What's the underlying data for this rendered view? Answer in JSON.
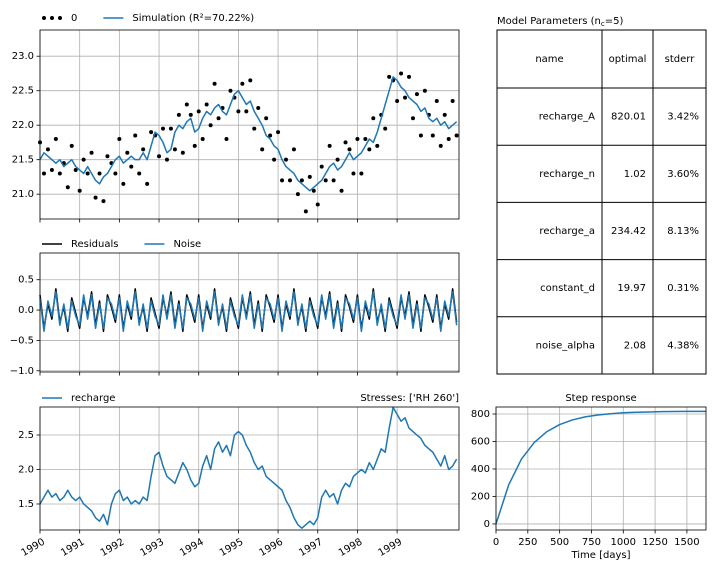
{
  "chart_data": [
    {
      "type": "line",
      "grid": true,
      "xlim": [
        1990,
        2000.56
      ],
      "xticks": [
        1990,
        1991,
        1992,
        1993,
        1994,
        1995,
        1996,
        1997,
        1998,
        1999
      ],
      "ylim": [
        20.64,
        23.38
      ],
      "yticks": [
        {
          "value": 21,
          "label": "21.0"
        },
        21.5,
        {
          "value": 22,
          "label": "22.0"
        },
        22.5,
        {
          "value": 23,
          "label": "23.0"
        }
      ],
      "x": [
        1990,
        1990.1,
        1990.2,
        1990.3,
        1990.4,
        1990.5,
        1990.6,
        1990.7,
        1990.8,
        1990.9,
        1991,
        1991.1,
        1991.2,
        1991.3,
        1991.4,
        1991.5,
        1991.6,
        1991.7,
        1991.8,
        1991.9,
        1992,
        1992.1,
        1992.2,
        1992.3,
        1992.4,
        1992.5,
        1992.6,
        1992.7,
        1992.8,
        1992.9,
        1993,
        1993.1,
        1993.2,
        1993.3,
        1993.4,
        1993.5,
        1993.6,
        1993.7,
        1993.8,
        1993.9,
        1994,
        1994.1,
        1994.2,
        1994.3,
        1994.4,
        1994.5,
        1994.6,
        1994.7,
        1994.8,
        1994.9,
        1995,
        1995.1,
        1995.2,
        1995.3,
        1995.4,
        1995.5,
        1995.6,
        1995.7,
        1995.8,
        1995.9,
        1996,
        1996.1,
        1996.2,
        1996.3,
        1996.4,
        1996.5,
        1996.6,
        1996.7,
        1996.8,
        1996.9,
        1997,
        1997.1,
        1997.2,
        1997.3,
        1997.4,
        1997.5,
        1997.6,
        1997.7,
        1997.8,
        1997.9,
        1998,
        1998.1,
        1998.2,
        1998.3,
        1998.4,
        1998.5,
        1998.6,
        1998.7,
        1998.8,
        1998.9,
        1999,
        1999.1,
        1999.2,
        1999.3,
        1999.4,
        1999.5,
        1999.6,
        1999.7,
        1999.8,
        1999.9,
        2000,
        2000.1,
        2000.2,
        2000.3,
        2000.4,
        2000.5
      ],
      "series": [
        {
          "name": "0",
          "color": "#000000",
          "marker": true,
          "values": [
            21.75,
            21.3,
            21.65,
            21.35,
            21.8,
            21.3,
            21.45,
            21.1,
            21.7,
            21.35,
            21.05,
            21.5,
            21.3,
            21.6,
            20.95,
            21.3,
            20.9,
            21.55,
            21.45,
            21.3,
            21.8,
            21.15,
            21.6,
            21.4,
            21.85,
            21.3,
            21.65,
            21.15,
            21.9,
            21.85,
            21.55,
            21.95,
            21.5,
            21.95,
            21.65,
            22.15,
            21.6,
            22.3,
            22.15,
            21.7,
            22.2,
            21.8,
            22.3,
            22.0,
            22.6,
            22.1,
            22.25,
            21.8,
            22.5,
            22.4,
            22.2,
            22.6,
            22.2,
            22.65,
            21.95,
            22.25,
            21.65,
            22.1,
            21.85,
            21.5,
            21.9,
            21.2,
            21.5,
            21.2,
            21.65,
            21.0,
            21.2,
            20.75,
            21.25,
            21.05,
            20.85,
            21.4,
            21.2,
            21.7,
            21.2,
            21.5,
            21.05,
            21.75,
            21.65,
            21.3,
            21.8,
            21.3,
            21.8,
            21.65,
            22.1,
            21.7,
            22.15,
            21.95,
            22.7,
            22.65,
            22.35,
            22.75,
            22.4,
            22.7,
            22.1,
            22.45,
            21.85,
            22.5,
            22.15,
            21.85,
            22.35,
            21.7,
            22.15,
            21.8,
            22.35,
            21.85
          ]
        },
        {
          "name": "Simulation (R²=70.22%)",
          "color": "#1f77b4",
          "values": [
            21.5,
            21.6,
            21.55,
            21.5,
            21.45,
            21.5,
            21.4,
            21.45,
            21.5,
            21.4,
            21.35,
            21.3,
            21.4,
            21.3,
            21.2,
            21.15,
            21.25,
            21.3,
            21.4,
            21.5,
            21.55,
            21.45,
            21.5,
            21.55,
            21.5,
            21.5,
            21.6,
            21.5,
            21.7,
            21.9,
            21.85,
            21.75,
            21.6,
            21.65,
            21.9,
            22.0,
            21.95,
            22.05,
            22.1,
            21.9,
            21.95,
            22.1,
            22.2,
            22.15,
            22.25,
            22.3,
            22.2,
            22.15,
            22.3,
            22.45,
            22.5,
            22.4,
            22.3,
            22.35,
            22.2,
            22.1,
            22.0,
            21.85,
            21.8,
            21.7,
            21.65,
            21.5,
            21.4,
            21.35,
            21.3,
            21.2,
            21.15,
            21.1,
            21.05,
            21.1,
            21.15,
            21.2,
            21.3,
            21.4,
            21.45,
            21.35,
            21.4,
            21.5,
            21.6,
            21.5,
            21.55,
            21.6,
            21.7,
            21.8,
            21.75,
            21.9,
            22.1,
            22.3,
            22.5,
            22.7,
            22.65,
            22.55,
            22.5,
            22.4,
            22.35,
            22.3,
            22.2,
            22.25,
            22.1,
            22.05,
            22.1,
            22.0,
            22.05,
            21.95,
            22.0,
            22.05
          ]
        }
      ]
    },
    {
      "type": "line",
      "grid": true,
      "xlim": [
        1990,
        2000.56
      ],
      "xticks": [
        1990,
        1991,
        1992,
        1993,
        1994,
        1995,
        1996,
        1997,
        1998,
        1999
      ],
      "ylim": [
        -1.02,
        0.94
      ],
      "yticks": [
        {
          "value": -1,
          "label": "−1.0"
        },
        {
          "value": -0.5,
          "label": "−0.5"
        },
        {
          "value": 0,
          "label": "0.0"
        },
        0.5
      ],
      "x": [
        1990,
        1990.1,
        1990.2,
        1990.3,
        1990.4,
        1990.5,
        1990.6,
        1990.7,
        1990.8,
        1990.9,
        1991,
        1991.1,
        1991.2,
        1991.3,
        1991.4,
        1991.5,
        1991.6,
        1991.7,
        1991.8,
        1991.9,
        1992,
        1992.1,
        1992.2,
        1992.3,
        1992.4,
        1992.5,
        1992.6,
        1992.7,
        1992.8,
        1992.9,
        1993,
        1993.1,
        1993.2,
        1993.3,
        1993.4,
        1993.5,
        1993.6,
        1993.7,
        1993.8,
        1993.9,
        1994,
        1994.1,
        1994.2,
        1994.3,
        1994.4,
        1994.5,
        1994.6,
        1994.7,
        1994.8,
        1994.9,
        1995,
        1995.1,
        1995.2,
        1995.3,
        1995.4,
        1995.5,
        1995.6,
        1995.7,
        1995.8,
        1995.9,
        1996,
        1996.1,
        1996.2,
        1996.3,
        1996.4,
        1996.5,
        1996.6,
        1996.7,
        1996.8,
        1996.9,
        1997,
        1997.1,
        1997.2,
        1997.3,
        1997.4,
        1997.5,
        1997.6,
        1997.7,
        1997.8,
        1997.9,
        1998,
        1998.1,
        1998.2,
        1998.3,
        1998.4,
        1998.5,
        1998.6,
        1998.7,
        1998.8,
        1998.9,
        1999,
        1999.1,
        1999.2,
        1999.3,
        1999.4,
        1999.5,
        1999.6,
        1999.7,
        1999.8,
        1999.9,
        2000,
        2000.1,
        2000.2,
        2000.3,
        2000.4,
        2000.5
      ],
      "series": [
        {
          "name": "Residuals",
          "color": "#000000",
          "values": [
            0.25,
            -0.3,
            0.1,
            -0.15,
            0.35,
            -0.2,
            0.05,
            -0.35,
            0.2,
            -0.05,
            -0.3,
            0.2,
            -0.1,
            0.3,
            -0.25,
            0.15,
            -0.35,
            0.25,
            0.05,
            -0.2,
            0.25,
            -0.3,
            0.1,
            -0.15,
            0.35,
            -0.2,
            0.05,
            -0.35,
            0.2,
            -0.05,
            -0.3,
            0.2,
            -0.1,
            0.3,
            -0.25,
            0.15,
            -0.35,
            0.25,
            0.05,
            -0.2,
            0.25,
            -0.3,
            0.1,
            -0.15,
            0.35,
            -0.2,
            0.05,
            -0.35,
            0.2,
            -0.05,
            -0.3,
            0.2,
            -0.1,
            0.3,
            -0.25,
            0.15,
            -0.35,
            0.25,
            0.05,
            -0.2,
            0.25,
            -0.3,
            0.1,
            -0.15,
            0.35,
            -0.2,
            0.05,
            -0.35,
            0.2,
            -0.05,
            -0.3,
            0.2,
            -0.1,
            0.3,
            -0.25,
            0.15,
            -0.35,
            0.25,
            0.05,
            -0.2,
            0.25,
            -0.3,
            0.1,
            -0.15,
            0.35,
            -0.2,
            0.05,
            -0.35,
            0.2,
            -0.05,
            -0.3,
            0.2,
            -0.1,
            0.3,
            -0.25,
            0.15,
            -0.35,
            0.25,
            0.05,
            -0.2,
            0.25,
            -0.3,
            0.1,
            -0.15,
            0.35,
            -0.2
          ]
        },
        {
          "name": "Noise",
          "color": "#1f77b4",
          "values": [
            0.2,
            -0.35,
            0.15,
            -0.1,
            0.3,
            -0.25,
            0.1,
            -0.3,
            0.15,
            -0.1,
            -0.25,
            0.25,
            -0.15,
            0.25,
            -0.3,
            0.1,
            -0.3,
            0.2,
            0.1,
            -0.15,
            0.2,
            -0.35,
            0.15,
            -0.1,
            0.3,
            -0.25,
            0.1,
            -0.3,
            0.15,
            -0.1,
            -0.25,
            0.25,
            -0.15,
            0.25,
            -0.3,
            0.1,
            -0.3,
            0.2,
            0.1,
            -0.15,
            0.2,
            -0.35,
            0.15,
            -0.1,
            0.3,
            -0.25,
            0.1,
            -0.3,
            0.15,
            -0.1,
            -0.25,
            0.25,
            -0.15,
            0.25,
            -0.3,
            0.1,
            -0.3,
            0.2,
            0.1,
            -0.15,
            0.2,
            -0.35,
            0.15,
            -0.1,
            0.3,
            -0.25,
            0.1,
            -0.3,
            0.15,
            -0.1,
            -0.25,
            0.25,
            -0.15,
            0.25,
            -0.3,
            0.1,
            -0.3,
            0.2,
            0.1,
            -0.15,
            0.2,
            -0.35,
            0.15,
            -0.1,
            0.3,
            -0.25,
            0.1,
            -0.3,
            0.15,
            -0.1,
            -0.25,
            0.25,
            -0.15,
            0.25,
            -0.3,
            0.1,
            -0.3,
            0.2,
            0.1,
            -0.15,
            0.2,
            -0.35,
            0.15,
            -0.1,
            0.3,
            -0.25
          ]
        }
      ]
    },
    {
      "type": "line",
      "grid": true,
      "annotation": "Stresses: ['RH 260']",
      "xlim": [
        1990,
        2000.56
      ],
      "xticks": [
        1990,
        1991,
        1992,
        1993,
        1994,
        1995,
        1996,
        1997,
        1998,
        1999
      ],
      "ylim": [
        1.123,
        2.906
      ],
      "yticks": [
        1.5,
        {
          "value": 2,
          "label": "2.0"
        },
        2.5
      ],
      "x": [
        1990,
        1990.1,
        1990.2,
        1990.3,
        1990.4,
        1990.5,
        1990.6,
        1990.7,
        1990.8,
        1990.9,
        1991,
        1991.1,
        1991.2,
        1991.3,
        1991.4,
        1991.5,
        1991.6,
        1991.7,
        1991.8,
        1991.9,
        1992,
        1992.1,
        1992.2,
        1992.3,
        1992.4,
        1992.5,
        1992.6,
        1992.7,
        1992.8,
        1992.9,
        1993,
        1993.1,
        1993.2,
        1993.3,
        1993.4,
        1993.5,
        1993.6,
        1993.7,
        1993.8,
        1993.9,
        1994,
        1994.1,
        1994.2,
        1994.3,
        1994.4,
        1994.5,
        1994.6,
        1994.7,
        1994.8,
        1994.9,
        1995,
        1995.1,
        1995.2,
        1995.3,
        1995.4,
        1995.5,
        1995.6,
        1995.7,
        1995.8,
        1995.9,
        1996,
        1996.1,
        1996.2,
        1996.3,
        1996.4,
        1996.5,
        1996.6,
        1996.7,
        1996.8,
        1996.9,
        1997,
        1997.1,
        1997.2,
        1997.3,
        1997.4,
        1997.5,
        1997.6,
        1997.7,
        1997.8,
        1997.9,
        1998,
        1998.1,
        1998.2,
        1998.3,
        1998.4,
        1998.5,
        1998.6,
        1998.7,
        1998.8,
        1998.9,
        1999,
        1999.1,
        1999.2,
        1999.3,
        1999.4,
        1999.5,
        1999.6,
        1999.7,
        1999.8,
        1999.9,
        2000,
        2000.1,
        2000.2,
        2000.3,
        2000.4,
        2000.5
      ],
      "series": [
        {
          "name": "recharge",
          "color": "#1f77b4",
          "values": [
            1.5,
            1.6,
            1.7,
            1.6,
            1.65,
            1.55,
            1.6,
            1.7,
            1.6,
            1.55,
            1.6,
            1.5,
            1.45,
            1.4,
            1.3,
            1.25,
            1.35,
            1.2,
            1.5,
            1.65,
            1.7,
            1.55,
            1.6,
            1.5,
            1.55,
            1.5,
            1.6,
            1.55,
            1.9,
            2.2,
            2.25,
            2.05,
            1.9,
            1.85,
            1.8,
            1.95,
            2.1,
            2.0,
            1.85,
            1.75,
            1.8,
            2.05,
            2.2,
            2.0,
            2.3,
            2.4,
            2.25,
            2.35,
            2.2,
            2.5,
            2.55,
            2.5,
            2.35,
            2.25,
            2.1,
            2.0,
            2.05,
            1.9,
            1.85,
            1.8,
            1.75,
            1.7,
            1.55,
            1.45,
            1.3,
            1.2,
            1.15,
            1.2,
            1.25,
            1.2,
            1.3,
            1.6,
            1.7,
            1.6,
            1.65,
            1.5,
            1.7,
            1.8,
            1.75,
            1.9,
            1.95,
            2.0,
            1.95,
            2.1,
            2.0,
            2.15,
            2.3,
            2.25,
            2.6,
            2.9,
            2.8,
            2.7,
            2.75,
            2.6,
            2.55,
            2.5,
            2.45,
            2.35,
            2.3,
            2.25,
            2.15,
            2.05,
            2.2,
            2.0,
            2.05,
            2.15
          ]
        }
      ]
    },
    {
      "type": "line",
      "grid": true,
      "title": "Step response",
      "xlabel": "Time [days]",
      "xlim": [
        0,
        1650
      ],
      "xticks": [
        0,
        250,
        500,
        750,
        1000,
        1250,
        1500
      ],
      "ylim": [
        -44,
        851
      ],
      "yticks": [
        0,
        200,
        400,
        600,
        800
      ],
      "x": [
        0,
        100,
        200,
        300,
        400,
        500,
        600,
        700,
        800,
        900,
        1000,
        1100,
        1200,
        1300,
        1400,
        1500,
        1600,
        1650
      ],
      "series": [
        {
          "color": "#1f77b4",
          "values": [
            0,
            285,
            472,
            592,
            672,
            723,
            757,
            779,
            793,
            802,
            809,
            813,
            815,
            817,
            818,
            819,
            819,
            819
          ]
        }
      ]
    }
  ],
  "table": {
    "title": [
      "Model Parameters (n",
      "c",
      "=5)"
    ],
    "columns": [
      "name",
      "optimal",
      "stderr"
    ],
    "rows": [
      [
        "recharge_A",
        820.01,
        "3.42%"
      ],
      [
        "recharge_n",
        1.02,
        "3.60%"
      ],
      [
        "recharge_a",
        234.42,
        "8.13%"
      ],
      [
        "constant_d",
        19.97,
        "0.31%"
      ],
      [
        "noise_alpha",
        2.08,
        "4.38%"
      ]
    ]
  }
}
